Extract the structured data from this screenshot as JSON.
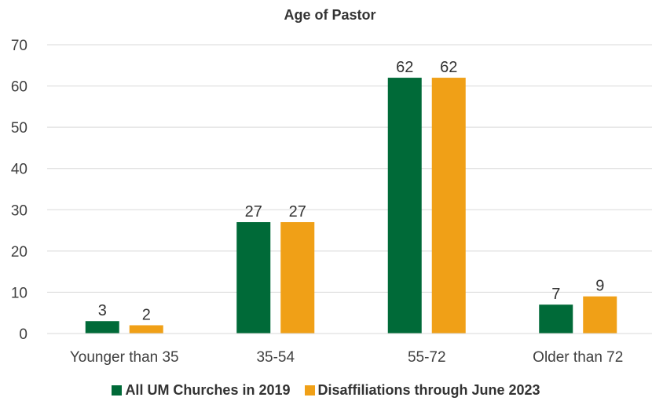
{
  "chart_data": {
    "type": "bar",
    "title": "Age of Pastor",
    "categories": [
      "Younger than 35",
      "35-54",
      "55-72",
      "Older than 72"
    ],
    "series": [
      {
        "name": "All UM Churches in 2019",
        "values": [
          3,
          27,
          62,
          7
        ],
        "color": "#006A38"
      },
      {
        "name": "Disaffiliations through June 2023",
        "values": [
          2,
          27,
          62,
          9
        ],
        "color": "#F0A017"
      }
    ],
    "ylim": [
      0,
      70
    ],
    "yticks": [
      0,
      10,
      20,
      30,
      40,
      50,
      60,
      70
    ],
    "grid": true,
    "data_labels": true,
    "legend_position": "bottom"
  }
}
